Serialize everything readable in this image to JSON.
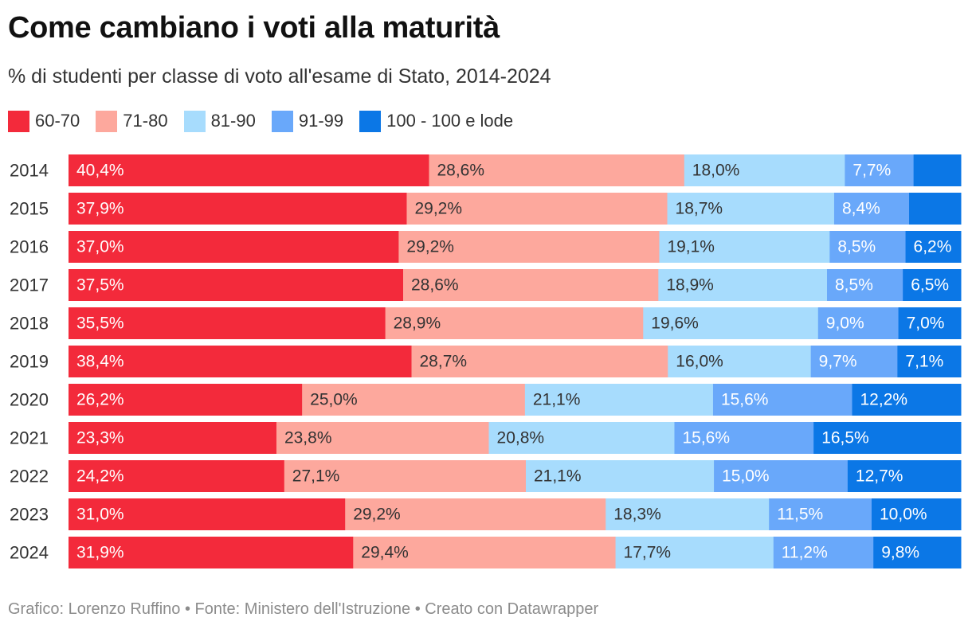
{
  "header": {
    "title": "Come cambiano i voti alla maturità",
    "subtitle": "% di studenti per classe di voto all'esame di Stato, 2014-2024"
  },
  "footer": {
    "text": "Grafico: Lorenzo Ruffino • Fonte: Ministero dell'Istruzione • Creato con Datawrapper"
  },
  "chart_data": {
    "type": "bar",
    "orientation": "horizontal",
    "stacked": true,
    "categories": [
      "2014",
      "2015",
      "2016",
      "2017",
      "2018",
      "2019",
      "2020",
      "2021",
      "2022",
      "2023",
      "2024"
    ],
    "legend_position": "top-left",
    "grid": false,
    "series": [
      {
        "name": "60-70",
        "color": "#f32a3b",
        "text_color": "#ffffff",
        "values": [
          40.4,
          37.9,
          37.0,
          37.5,
          35.5,
          38.4,
          26.2,
          23.3,
          24.2,
          31.0,
          31.9
        ],
        "labels": [
          "40,4%",
          "37,9%",
          "37,0%",
          "37,5%",
          "35,5%",
          "38,4%",
          "26,2%",
          "23,3%",
          "24,2%",
          "31,0%",
          "31,9%"
        ]
      },
      {
        "name": "71-80",
        "color": "#fda89d",
        "text_color": "#333333",
        "values": [
          28.6,
          29.2,
          29.2,
          28.6,
          28.9,
          28.7,
          25.0,
          23.8,
          27.1,
          29.2,
          29.4
        ],
        "labels": [
          "28,6%",
          "29,2%",
          "29,2%",
          "28,6%",
          "28,9%",
          "28,7%",
          "25,0%",
          "23,8%",
          "27,1%",
          "29,2%",
          "29,4%"
        ]
      },
      {
        "name": "81-90",
        "color": "#a7dcfd",
        "text_color": "#333333",
        "values": [
          18.0,
          18.7,
          19.1,
          18.9,
          19.6,
          16.0,
          21.1,
          20.8,
          21.1,
          18.3,
          17.7
        ],
        "labels": [
          "18,0%",
          "18,7%",
          "19,1%",
          "18,9%",
          "19,6%",
          "16,0%",
          "21,1%",
          "20,8%",
          "21,1%",
          "18,3%",
          "17,7%"
        ]
      },
      {
        "name": "91-99",
        "color": "#69a8fa",
        "text_color": "#ffffff",
        "values": [
          7.7,
          8.4,
          8.5,
          8.5,
          9.0,
          9.7,
          15.6,
          15.6,
          15.0,
          11.5,
          11.2
        ],
        "labels": [
          "7,7%",
          "8,4%",
          "8,5%",
          "8,5%",
          "9,0%",
          "9,7%",
          "15,6%",
          "15,6%",
          "15,0%",
          "11,5%",
          "11,2%"
        ]
      },
      {
        "name": "100 - 100 e lode",
        "color": "#0b77e6",
        "text_color": "#ffffff",
        "values": [
          5.3,
          5.8,
          6.2,
          6.5,
          7.0,
          7.1,
          12.2,
          16.5,
          12.7,
          10.0,
          9.8
        ],
        "labels": [
          "",
          "",
          "6,2%",
          "6,5%",
          "7,0%",
          "7,1%",
          "12,2%",
          "16,5%",
          "12,7%",
          "10,0%",
          "9,8%"
        ]
      }
    ]
  }
}
